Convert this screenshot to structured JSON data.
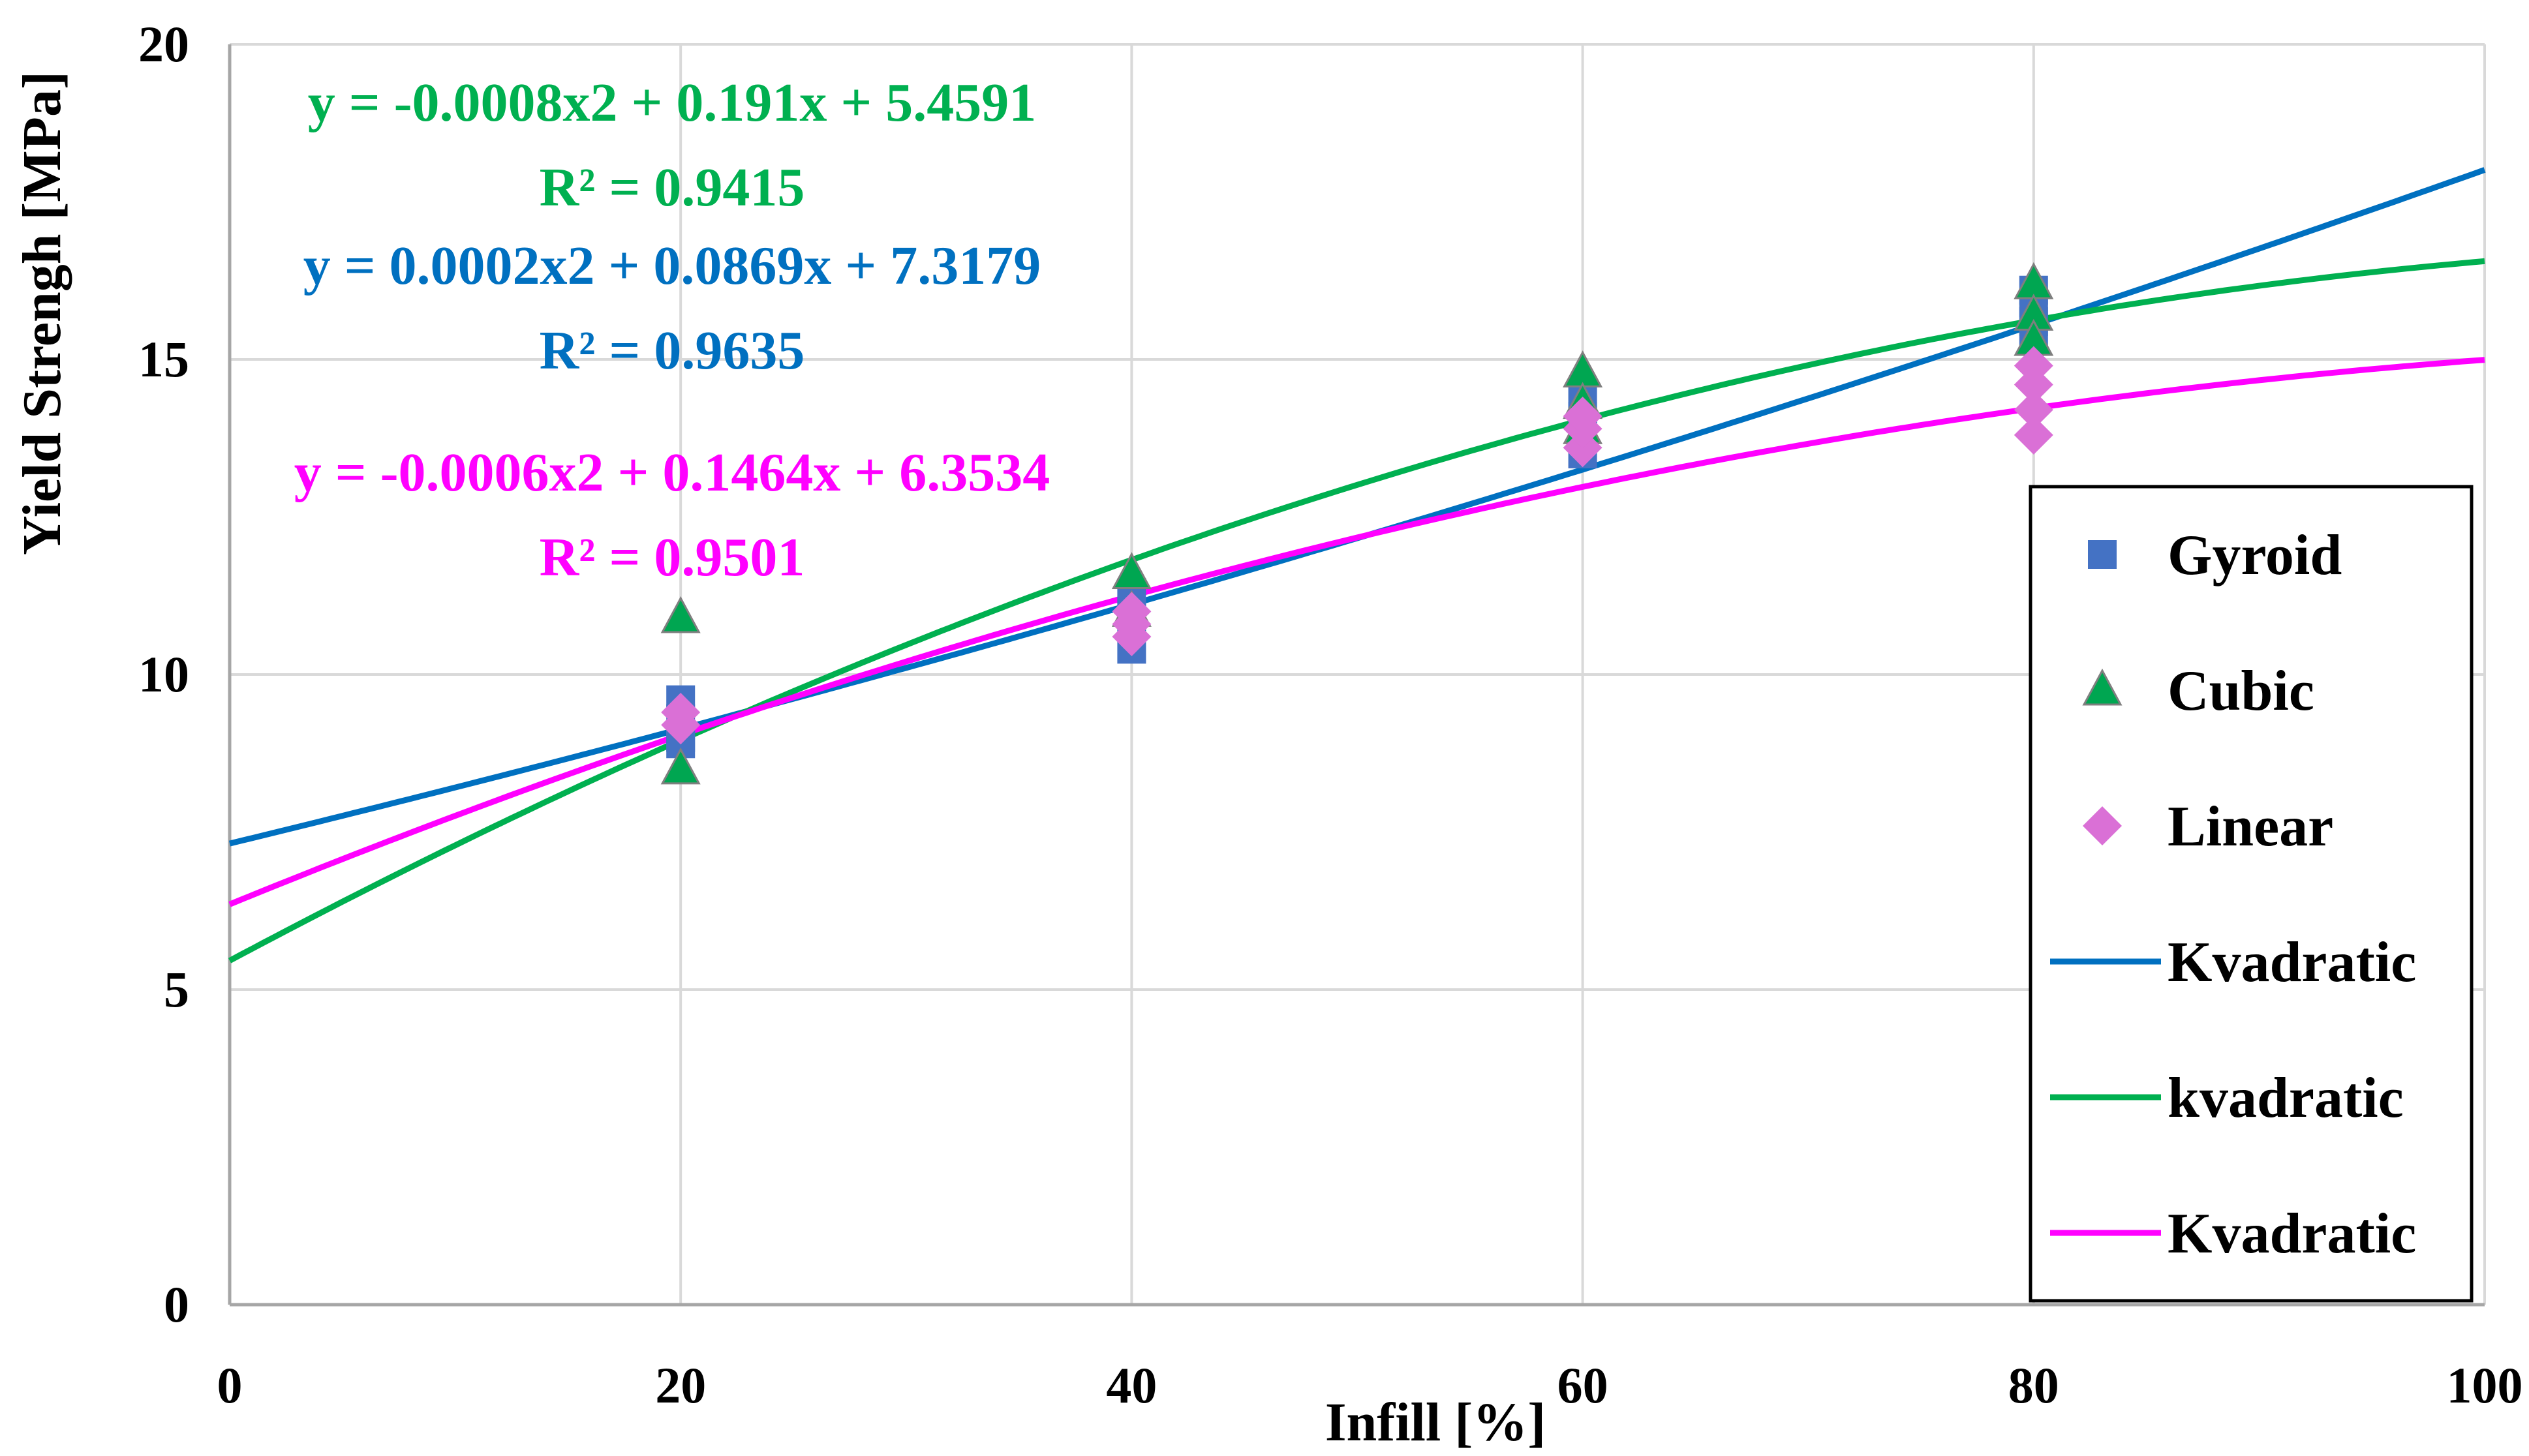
{
  "chart_data": {
    "type": "scatter",
    "xlabel": "Infill [%]",
    "ylabel": "Yield Strengh [MPa]",
    "xlim": [
      0,
      100
    ],
    "ylim": [
      0,
      20
    ],
    "x_ticks": [
      "0",
      "20",
      "40",
      "60",
      "80",
      "100"
    ],
    "y_ticks": [
      "0",
      "5",
      "10",
      "15",
      "20"
    ],
    "grid": true,
    "legend_position": "right",
    "series": [
      {
        "name": "Gyroid",
        "kind": "scatter",
        "marker": "square",
        "color": "#4472C4",
        "points": [
          [
            20,
            9.6
          ],
          [
            20,
            9.3
          ],
          [
            20,
            9.0
          ],
          [
            20,
            8.9
          ],
          [
            40,
            10.4
          ],
          [
            40,
            10.8
          ],
          [
            40,
            11.0
          ],
          [
            40,
            11.3
          ],
          [
            60,
            13.5
          ],
          [
            60,
            13.8
          ],
          [
            60,
            14.1
          ],
          [
            60,
            14.4
          ],
          [
            80,
            15.3
          ],
          [
            80,
            15.6
          ],
          [
            80,
            15.9
          ],
          [
            80,
            16.1
          ]
        ]
      },
      {
        "name": "Cubic",
        "kind": "scatter",
        "marker": "triangle",
        "color": "#00A651",
        "points": [
          [
            20,
            10.9
          ],
          [
            20,
            8.5
          ],
          [
            40,
            11.6
          ],
          [
            40,
            11.0
          ],
          [
            60,
            14.8
          ],
          [
            60,
            14.3
          ],
          [
            60,
            13.9
          ],
          [
            80,
            16.2
          ],
          [
            80,
            15.7
          ],
          [
            80,
            15.3
          ]
        ]
      },
      {
        "name": "Linear",
        "kind": "scatter",
        "marker": "diamond",
        "color": "#DA70D6",
        "points": [
          [
            20,
            9.4
          ],
          [
            20,
            9.2
          ],
          [
            40,
            10.6
          ],
          [
            40,
            10.8
          ],
          [
            40,
            11.0
          ],
          [
            60,
            13.6
          ],
          [
            60,
            13.9
          ],
          [
            60,
            14.1
          ],
          [
            80,
            13.8
          ],
          [
            80,
            14.2
          ],
          [
            80,
            14.6
          ],
          [
            80,
            14.9
          ]
        ]
      },
      {
        "name": "Kvadratic",
        "kind": "trendline",
        "color": "#0070C0",
        "coefficients": [
          0.0002,
          0.0869,
          7.3179
        ],
        "equation": "y = 0.0002x2 + 0.0869x + 7.3179",
        "r2": "R² = 0.9635"
      },
      {
        "name": "kvadratic",
        "kind": "trendline",
        "color": "#00B050",
        "coefficients": [
          -0.0008,
          0.191,
          5.4591
        ],
        "equation": "y = -0.0008x2 + 0.191x + 5.4591",
        "r2": "R² = 0.9415"
      },
      {
        "name": "Kvadratic",
        "kind": "trendline",
        "color": "#FF00FF",
        "coefficients": [
          -0.0006,
          0.1464,
          6.3534
        ],
        "equation": "y = -0.0006x2 + 0.1464x + 6.3534",
        "r2": "R² = 0.9501"
      }
    ]
  }
}
